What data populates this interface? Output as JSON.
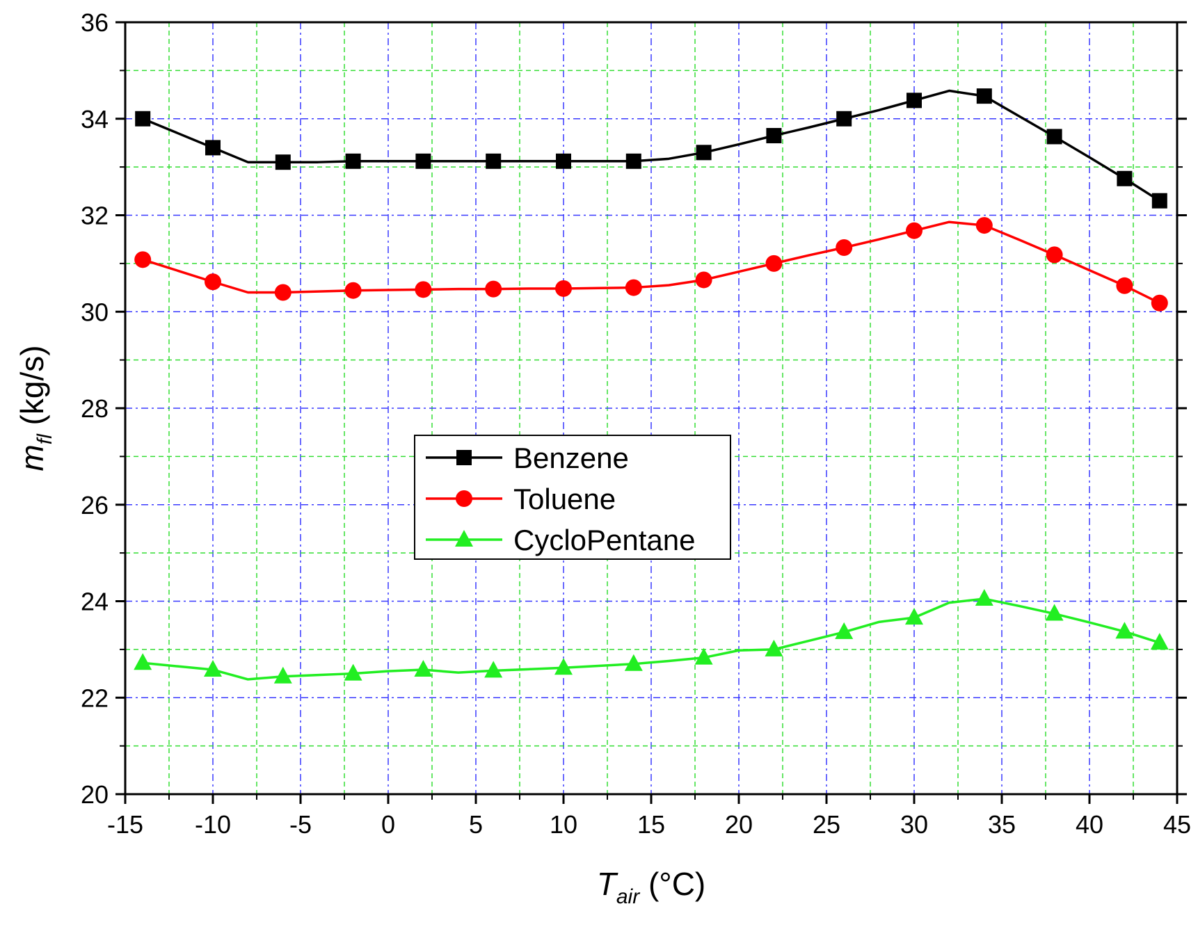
{
  "chart_data": {
    "type": "line",
    "title": "",
    "xlabel": {
      "symbol": "T",
      "subscript": "air",
      "unit": " (°C)"
    },
    "ylabel": {
      "symbol": "m",
      "subscript": "fl",
      "unit": " (kg/s)"
    },
    "xlim": [
      -15,
      45
    ],
    "ylim": [
      20,
      36
    ],
    "x_ticks": [
      -15,
      -10,
      -5,
      0,
      5,
      10,
      15,
      20,
      25,
      30,
      35,
      40,
      45
    ],
    "x_tick_labels": [
      "-15",
      "-10",
      "-5",
      "0",
      "5",
      "10",
      "15",
      "20",
      "25",
      "30",
      "35",
      "40",
      "45"
    ],
    "y_ticks": [
      20,
      22,
      24,
      26,
      28,
      30,
      32,
      34,
      36
    ],
    "y_tick_labels": [
      "20",
      "22",
      "24",
      "26",
      "28",
      "30",
      "32",
      "34",
      "36"
    ],
    "grid": {
      "major": true,
      "minor": true,
      "major_color": "#3a3aff",
      "minor_color": "#33dd33"
    },
    "legend_position": "center-left",
    "series": [
      {
        "name": "Benzene",
        "color": "#000000",
        "marker": "square",
        "line_x": [
          -14,
          -12,
          -10,
          -8,
          -6,
          -4,
          -2,
          0,
          2,
          4,
          6,
          8,
          10,
          12,
          14,
          16,
          18,
          20,
          22,
          24,
          26,
          28,
          30,
          32,
          34,
          36,
          38,
          40,
          42,
          44
        ],
        "line_y": [
          34.0,
          33.7,
          33.4,
          33.1,
          33.1,
          33.1,
          33.12,
          33.12,
          33.12,
          33.12,
          33.12,
          33.12,
          33.12,
          33.12,
          33.12,
          33.17,
          33.3,
          33.47,
          33.65,
          33.82,
          34.0,
          34.18,
          34.38,
          34.58,
          34.47,
          34.05,
          33.63,
          33.2,
          32.76,
          32.3
        ],
        "marker_x": [
          -14,
          -10,
          -6,
          -2,
          2,
          6,
          10,
          14,
          18,
          22,
          26,
          30,
          34,
          38,
          42,
          44
        ],
        "marker_y": [
          34.0,
          33.4,
          33.1,
          33.12,
          33.12,
          33.12,
          33.12,
          33.12,
          33.3,
          33.65,
          34.0,
          34.38,
          34.47,
          33.63,
          32.76,
          32.3
        ]
      },
      {
        "name": "Toluene",
        "color": "#ff0000",
        "marker": "circle",
        "line_x": [
          -14,
          -12,
          -10,
          -8,
          -6,
          -4,
          -2,
          0,
          2,
          4,
          6,
          8,
          10,
          12,
          14,
          16,
          18,
          20,
          22,
          24,
          26,
          28,
          30,
          32,
          34,
          36,
          38,
          40,
          42,
          44
        ],
        "line_y": [
          31.08,
          30.85,
          30.62,
          30.4,
          30.4,
          30.42,
          30.44,
          30.45,
          30.46,
          30.47,
          30.47,
          30.48,
          30.48,
          30.49,
          30.5,
          30.55,
          30.66,
          30.83,
          31.0,
          31.17,
          31.33,
          31.5,
          31.68,
          31.86,
          31.79,
          31.49,
          31.18,
          30.86,
          30.54,
          30.18
        ],
        "marker_x": [
          -14,
          -10,
          -6,
          -2,
          2,
          6,
          10,
          14,
          18,
          22,
          26,
          30,
          34,
          38,
          42,
          44
        ],
        "marker_y": [
          31.08,
          30.62,
          30.4,
          30.44,
          30.46,
          30.47,
          30.48,
          30.5,
          30.66,
          31.0,
          31.33,
          31.68,
          31.79,
          31.18,
          30.54,
          30.18
        ]
      },
      {
        "name": "CycloPentane",
        "color": "#22ee22",
        "marker": "triangle",
        "line_x": [
          -14,
          -12,
          -10,
          -8,
          -6,
          -4,
          -2,
          0,
          2,
          4,
          6,
          8,
          10,
          12,
          14,
          16,
          18,
          20,
          22,
          24,
          26,
          28,
          30,
          32,
          34,
          36,
          38,
          40,
          42,
          44
        ],
        "line_y": [
          22.72,
          22.65,
          22.58,
          22.38,
          22.44,
          22.47,
          22.5,
          22.55,
          22.58,
          22.52,
          22.56,
          22.59,
          22.62,
          22.66,
          22.7,
          22.76,
          22.83,
          22.98,
          23.0,
          23.18,
          23.36,
          23.57,
          23.66,
          23.97,
          24.05,
          23.9,
          23.74,
          23.56,
          23.37,
          23.14
        ],
        "marker_x": [
          -14,
          -10,
          -6,
          -2,
          2,
          6,
          10,
          14,
          18,
          22,
          26,
          30,
          34,
          38,
          42,
          44
        ],
        "marker_y": [
          22.72,
          22.58,
          22.44,
          22.5,
          22.58,
          22.56,
          22.62,
          22.7,
          22.83,
          23.0,
          23.36,
          23.66,
          24.05,
          23.74,
          23.37,
          23.14
        ]
      }
    ]
  }
}
